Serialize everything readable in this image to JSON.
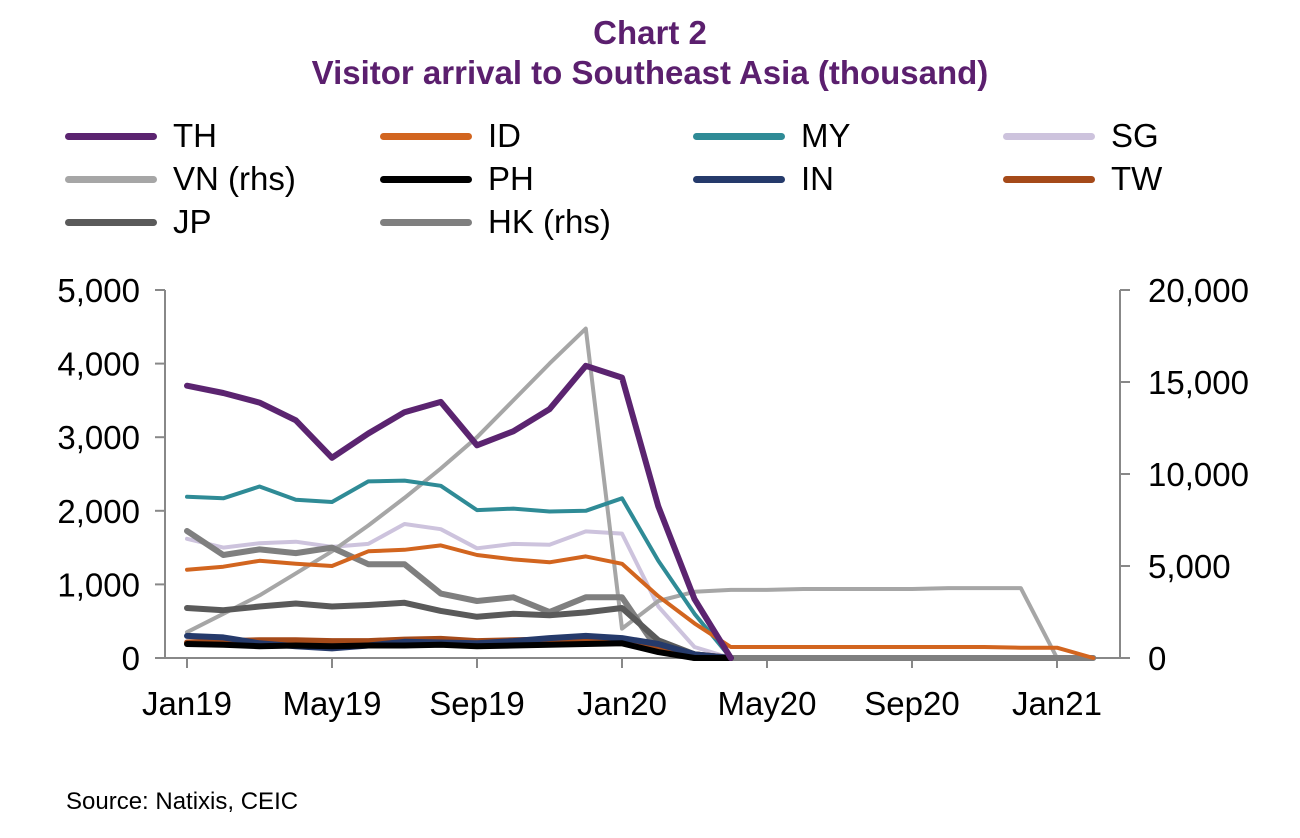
{
  "chart_data": {
    "type": "line",
    "title": "Chart 2",
    "subtitle": "Visitor arrival to Southeast Asia (thousand)",
    "source": "Source: Natixis, CEIC",
    "x": [
      "Jan19",
      "Feb19",
      "Mar19",
      "Apr19",
      "May19",
      "Jun19",
      "Jul19",
      "Aug19",
      "Sep19",
      "Oct19",
      "Nov19",
      "Dec19",
      "Jan20",
      "Feb20",
      "Mar20",
      "Apr20",
      "May20",
      "Jun20",
      "Jul20",
      "Aug20",
      "Sep20",
      "Oct20",
      "Nov20",
      "Dec20",
      "Jan21",
      "Feb21"
    ],
    "x_tick_labels": [
      "Jan19",
      "May19",
      "Sep19",
      "Jan20",
      "May20",
      "Sep20",
      "Jan21"
    ],
    "y_left": {
      "ylim": [
        0,
        5000
      ],
      "ticks": [
        "0",
        "1,000",
        "2,000",
        "3,000",
        "4,000",
        "5,000"
      ]
    },
    "y_right": {
      "ylim": [
        0,
        20000
      ],
      "ticks": [
        "0",
        "5,000",
        "10,000",
        "15,000",
        "20,000"
      ]
    },
    "grid": false,
    "legend_position": "top",
    "series": [
      {
        "name": "TH",
        "axis": "left",
        "color": "#5b2470",
        "width": 6,
        "values": [
          3700,
          3600,
          3470,
          3230,
          2720,
          3050,
          3340,
          3480,
          2890,
          3080,
          3380,
          3970,
          3810,
          2060,
          800,
          0,
          null,
          null,
          null,
          null,
          null,
          null,
          null,
          null,
          null,
          null
        ]
      },
      {
        "name": "ID",
        "axis": "left",
        "color": "#d2651f",
        "width": 4,
        "values": [
          1200,
          1240,
          1320,
          1280,
          1250,
          1450,
          1470,
          1530,
          1400,
          1340,
          1300,
          1380,
          1280,
          840,
          470,
          150,
          150,
          150,
          150,
          150,
          150,
          150,
          150,
          140,
          140,
          0
        ]
      },
      {
        "name": "MY",
        "axis": "left",
        "color": "#2f8b96",
        "width": 4,
        "values": [
          2190,
          2170,
          2330,
          2150,
          2120,
          2400,
          2410,
          2340,
          2010,
          2030,
          1990,
          2000,
          2170,
          1320,
          600,
          0,
          null,
          null,
          null,
          null,
          null,
          null,
          null,
          null,
          null,
          null
        ]
      },
      {
        "name": "SG",
        "axis": "left",
        "color": "#cdc3dd",
        "width": 4,
        "values": [
          1620,
          1500,
          1560,
          1580,
          1510,
          1550,
          1820,
          1750,
          1490,
          1550,
          1540,
          1720,
          1690,
          700,
          150,
          0,
          null,
          null,
          null,
          null,
          null,
          null,
          null,
          null,
          null,
          null
        ]
      },
      {
        "name": "VN (rhs)",
        "axis": "right",
        "color": "#a6a6a6",
        "width": 4,
        "values": [
          1400,
          2400,
          3400,
          4600,
          5800,
          7200,
          8700,
          10300,
          12000,
          14000,
          16000,
          17900,
          1600,
          3100,
          3600,
          3700,
          3700,
          3750,
          3750,
          3750,
          3750,
          3800,
          3800,
          3800,
          0,
          0
        ]
      },
      {
        "name": "PH",
        "axis": "left",
        "color": "#000000",
        "width": 6,
        "values": [
          190,
          180,
          160,
          170,
          160,
          170,
          170,
          180,
          160,
          170,
          180,
          190,
          200,
          80,
          0,
          0,
          null,
          null,
          null,
          null,
          null,
          null,
          null,
          null,
          null,
          null
        ]
      },
      {
        "name": "IN",
        "axis": "left",
        "color": "#253a6b",
        "width": 6,
        "values": [
          300,
          280,
          200,
          160,
          130,
          170,
          220,
          210,
          200,
          230,
          270,
          300,
          270,
          190,
          50,
          0,
          null,
          null,
          null,
          null,
          null,
          null,
          null,
          null,
          null,
          null
        ]
      },
      {
        "name": "TW",
        "axis": "left",
        "color": "#a54a19",
        "width": 6,
        "values": [
          210,
          230,
          240,
          240,
          230,
          230,
          250,
          260,
          230,
          240,
          250,
          260,
          230,
          150,
          50,
          0,
          null,
          null,
          null,
          null,
          null,
          null,
          null,
          null,
          null,
          null
        ]
      },
      {
        "name": "JP",
        "axis": "left",
        "color": "#5a5a5a",
        "width": 6,
        "values": [
          680,
          650,
          700,
          740,
          700,
          720,
          750,
          640,
          560,
          600,
          580,
          620,
          680,
          240,
          50,
          0,
          null,
          null,
          null,
          null,
          null,
          null,
          null,
          null,
          null,
          null
        ]
      },
      {
        "name": "HK (rhs)",
        "axis": "right",
        "color": "#7f7f7f",
        "width": 6,
        "values": [
          6900,
          5600,
          5900,
          5700,
          6000,
          5100,
          5100,
          3500,
          3100,
          3300,
          2500,
          3300,
          3300,
          400,
          0,
          0,
          0,
          0,
          0,
          0,
          0,
          0,
          0,
          0,
          0,
          0
        ]
      }
    ]
  }
}
